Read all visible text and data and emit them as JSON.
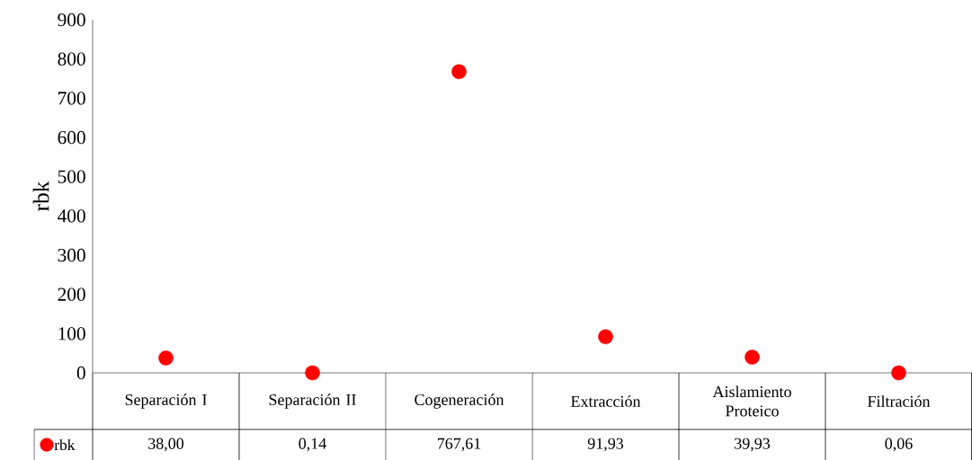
{
  "chart_data": {
    "type": "scatter",
    "ylabel": "rbk",
    "categories": [
      "Separación I",
      "Separación II",
      "Cogeneración",
      "Extracción",
      "Aislamiento Proteico",
      "Filtración"
    ],
    "series": [
      {
        "name": "rbk",
        "color": "#ff0000",
        "values": [
          38.0,
          0.14,
          767.61,
          91.93,
          39.93,
          0.06
        ],
        "value_labels": [
          "38,00",
          "0,14",
          "767,61",
          "91,93",
          "39,93",
          "0,06"
        ]
      }
    ],
    "ylim": [
      0,
      900
    ],
    "yticks": [
      0,
      100,
      200,
      300,
      400,
      500,
      600,
      700,
      800,
      900
    ],
    "marker": "circle",
    "legend": "bottom",
    "grid": false
  }
}
